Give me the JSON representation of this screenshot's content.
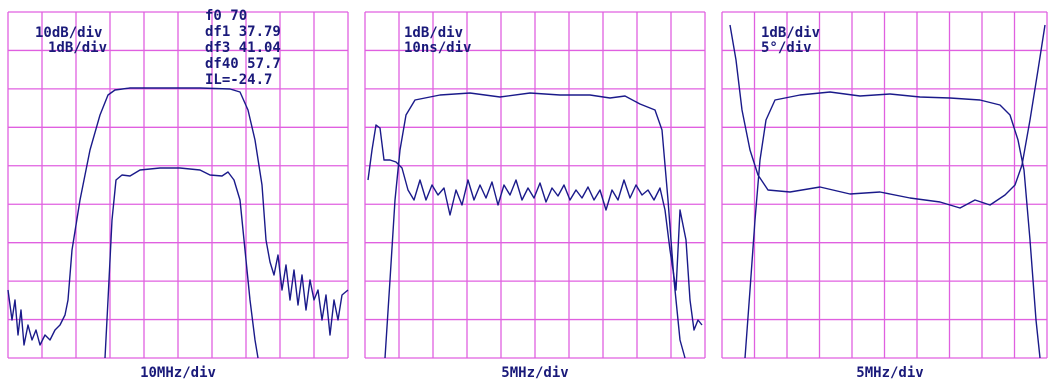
{
  "panels": [
    {
      "scales": [
        "10dB/div",
        "1dB/div"
      ],
      "readout": [
        "f0 70",
        "df1 37.79",
        "df3 41.04",
        "df40 57.7",
        "IL=-24.7"
      ],
      "x_scale": "10MHz/div"
    },
    {
      "scales": [
        "1dB/div",
        "10ns/div"
      ],
      "x_scale": "5MHz/div"
    },
    {
      "scales": [
        "1dB/div",
        "5°/div"
      ],
      "x_scale": "5MHz/div"
    }
  ]
}
